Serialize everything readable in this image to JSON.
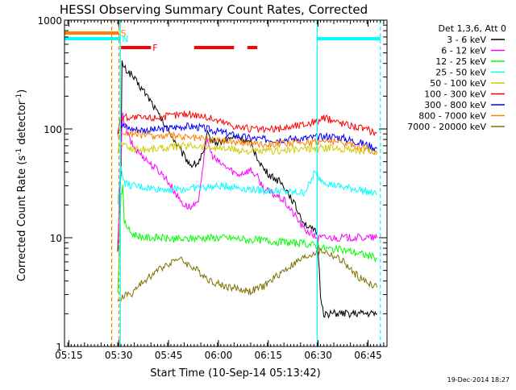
{
  "chart_data": {
    "type": "line",
    "title": "HESSI Observing Summary Count Rates, Corrected",
    "xlabel": "Start Time (10-Sep-14 05:13:42)",
    "ylabel": "Corrected Count Rate (s",
    "ylabel_sup1": "-1",
    "ylabel_mid": " detector",
    "ylabel_sup2": "-1",
    "ylabel_end": ")",
    "y_scale": "log",
    "ylim": [
      1,
      1000
    ],
    "xlim_minutes": [
      0,
      97
    ],
    "x_start": "05:13:42",
    "x_ticks": [
      {
        "minute": 1.3,
        "label": "05:15"
      },
      {
        "minute": 16.3,
        "label": "05:30"
      },
      {
        "minute": 31.3,
        "label": "05:45"
      },
      {
        "minute": 46.3,
        "label": "06:00"
      },
      {
        "minute": 61.3,
        "label": "06:15"
      },
      {
        "minute": 76.3,
        "label": "06:30"
      },
      {
        "minute": 91.3,
        "label": "06:45"
      }
    ],
    "y_ticks": [
      {
        "value": 1,
        "label": "1"
      },
      {
        "value": 10,
        "label": "10"
      },
      {
        "value": 100,
        "label": "100"
      },
      {
        "value": 1000,
        "label": "1000"
      }
    ],
    "legend_title": "Det 1,3,6, Att 0",
    "legend_position": "right",
    "series": [
      {
        "name": "3 - 6 keV",
        "color": "#000000",
        "points": [
          [
            16,
            8
          ],
          [
            17,
            40
          ],
          [
            17.3,
            420
          ],
          [
            18,
            360
          ],
          [
            20,
            320
          ],
          [
            22,
            260
          ],
          [
            24,
            220
          ],
          [
            26,
            180
          ],
          [
            28,
            140
          ],
          [
            30,
            110
          ],
          [
            32,
            90
          ],
          [
            34,
            70
          ],
          [
            36,
            56
          ],
          [
            38,
            47
          ],
          [
            40,
            48
          ],
          [
            42,
            62
          ],
          [
            43,
            90
          ],
          [
            44,
            80
          ],
          [
            46,
            75
          ],
          [
            48,
            78
          ],
          [
            50,
            82
          ],
          [
            52,
            85
          ],
          [
            54,
            80
          ],
          [
            56,
            72
          ],
          [
            58,
            55
          ],
          [
            60,
            42
          ],
          [
            62,
            37
          ],
          [
            64,
            34
          ],
          [
            66,
            30
          ],
          [
            68,
            24
          ],
          [
            70,
            18
          ],
          [
            72,
            14
          ],
          [
            74,
            12
          ],
          [
            76,
            11
          ],
          [
            77,
            3
          ],
          [
            78,
            2
          ],
          [
            80,
            2
          ],
          [
            82,
            2
          ],
          [
            84,
            2
          ],
          [
            86,
            2
          ],
          [
            88,
            2
          ],
          [
            90,
            2
          ],
          [
            92,
            2
          ],
          [
            94,
            2
          ]
        ]
      },
      {
        "name": "6 - 12 keV",
        "color": "#ff00ff",
        "points": [
          [
            16,
            8
          ],
          [
            17,
            60
          ],
          [
            17.5,
            150
          ],
          [
            18,
            110
          ],
          [
            20,
            75
          ],
          [
            22,
            62
          ],
          [
            24,
            55
          ],
          [
            26,
            47
          ],
          [
            28,
            42
          ],
          [
            30,
            37
          ],
          [
            32,
            30
          ],
          [
            34,
            24
          ],
          [
            36,
            20
          ],
          [
            38,
            19
          ],
          [
            40,
            20
          ],
          [
            42,
            55
          ],
          [
            43,
            80
          ],
          [
            44,
            60
          ],
          [
            46,
            50
          ],
          [
            48,
            46
          ],
          [
            50,
            42
          ],
          [
            52,
            38
          ],
          [
            54,
            40
          ],
          [
            56,
            42
          ],
          [
            58,
            36
          ],
          [
            60,
            28
          ],
          [
            62,
            26
          ],
          [
            64,
            24
          ],
          [
            66,
            22
          ],
          [
            68,
            18
          ],
          [
            70,
            15
          ],
          [
            72,
            12
          ],
          [
            74,
            11
          ],
          [
            76,
            10
          ],
          [
            78,
            10
          ],
          [
            80,
            10
          ],
          [
            84,
            10
          ],
          [
            88,
            10
          ],
          [
            92,
            10
          ],
          [
            94,
            10
          ]
        ]
      },
      {
        "name": "12 - 25 keV",
        "color": "#00ff00",
        "points": [
          [
            16,
            3
          ],
          [
            17,
            25
          ],
          [
            17.5,
            30
          ],
          [
            18,
            14
          ],
          [
            20,
            11
          ],
          [
            24,
            10
          ],
          [
            28,
            10
          ],
          [
            32,
            9.8
          ],
          [
            36,
            9.6
          ],
          [
            40,
            10
          ],
          [
            44,
            10
          ],
          [
            48,
            10
          ],
          [
            52,
            9.8
          ],
          [
            56,
            9.5
          ],
          [
            60,
            9.5
          ],
          [
            64,
            9.2
          ],
          [
            68,
            9
          ],
          [
            72,
            8.8
          ],
          [
            76,
            8.5
          ],
          [
            78,
            8
          ],
          [
            82,
            7.8
          ],
          [
            86,
            7.5
          ],
          [
            90,
            7
          ],
          [
            94,
            6.5
          ]
        ]
      },
      {
        "name": "25 - 50 keV",
        "color": "#00ffff",
        "points": [
          [
            16,
            20
          ],
          [
            17,
            45
          ],
          [
            18,
            32
          ],
          [
            20,
            30
          ],
          [
            24,
            29
          ],
          [
            28,
            28
          ],
          [
            32,
            28
          ],
          [
            36,
            28
          ],
          [
            40,
            29
          ],
          [
            44,
            29
          ],
          [
            48,
            30
          ],
          [
            52,
            29
          ],
          [
            56,
            28
          ],
          [
            60,
            27
          ],
          [
            64,
            27
          ],
          [
            68,
            26
          ],
          [
            72,
            26
          ],
          [
            74,
            32
          ],
          [
            75,
            40
          ],
          [
            76,
            36
          ],
          [
            80,
            31
          ],
          [
            84,
            29
          ],
          [
            88,
            28
          ],
          [
            92,
            26
          ],
          [
            94,
            25
          ]
        ]
      },
      {
        "name": "50 - 100 keV",
        "color": "#cccc00",
        "points": [
          [
            16,
            60
          ],
          [
            17,
            75
          ],
          [
            18,
            70
          ],
          [
            20,
            66
          ],
          [
            24,
            65
          ],
          [
            28,
            66
          ],
          [
            32,
            68
          ],
          [
            36,
            70
          ],
          [
            40,
            70
          ],
          [
            44,
            68
          ],
          [
            48,
            66
          ],
          [
            52,
            64
          ],
          [
            56,
            62
          ],
          [
            60,
            62
          ],
          [
            64,
            63
          ],
          [
            68,
            64
          ],
          [
            72,
            65
          ],
          [
            76,
            66
          ],
          [
            80,
            67
          ],
          [
            84,
            66
          ],
          [
            88,
            64
          ],
          [
            92,
            62
          ],
          [
            94,
            60
          ]
        ]
      },
      {
        "name": "100 - 300 keV",
        "color": "#ff0000",
        "points": [
          [
            16,
            95
          ],
          [
            17,
            125
          ],
          [
            18,
            130
          ],
          [
            20,
            128
          ],
          [
            24,
            125
          ],
          [
            28,
            128
          ],
          [
            32,
            132
          ],
          [
            36,
            138
          ],
          [
            40,
            135
          ],
          [
            44,
            125
          ],
          [
            48,
            115
          ],
          [
            52,
            105
          ],
          [
            56,
            100
          ],
          [
            60,
            98
          ],
          [
            64,
            100
          ],
          [
            68,
            105
          ],
          [
            72,
            110
          ],
          [
            76,
            118
          ],
          [
            78,
            125
          ],
          [
            80,
            122
          ],
          [
            84,
            112
          ],
          [
            88,
            105
          ],
          [
            92,
            96
          ],
          [
            94,
            92
          ]
        ]
      },
      {
        "name": "300 - 800 keV",
        "color": "#0000ff",
        "points": [
          [
            16,
            95
          ],
          [
            17,
            110
          ],
          [
            18,
            105
          ],
          [
            20,
            100
          ],
          [
            24,
            98
          ],
          [
            28,
            98
          ],
          [
            32,
            102
          ],
          [
            36,
            106
          ],
          [
            40,
            104
          ],
          [
            44,
            98
          ],
          [
            48,
            92
          ],
          [
            52,
            86
          ],
          [
            56,
            82
          ],
          [
            60,
            80
          ],
          [
            64,
            80
          ],
          [
            68,
            81
          ],
          [
            72,
            82
          ],
          [
            76,
            84
          ],
          [
            80,
            86
          ],
          [
            84,
            82
          ],
          [
            88,
            76
          ],
          [
            92,
            70
          ],
          [
            94,
            66
          ]
        ]
      },
      {
        "name": "800 - 7000 keV",
        "color": "#ff8000",
        "points": [
          [
            16,
            85
          ],
          [
            17,
            95
          ],
          [
            18,
            92
          ],
          [
            20,
            90
          ],
          [
            24,
            88
          ],
          [
            28,
            86
          ],
          [
            32,
            86
          ],
          [
            36,
            84
          ],
          [
            40,
            82
          ],
          [
            44,
            80
          ],
          [
            48,
            78
          ],
          [
            52,
            76
          ],
          [
            56,
            74
          ],
          [
            60,
            73
          ],
          [
            64,
            73
          ],
          [
            68,
            74
          ],
          [
            72,
            75
          ],
          [
            76,
            77
          ],
          [
            80,
            78
          ],
          [
            84,
            74
          ],
          [
            88,
            70
          ],
          [
            92,
            64
          ],
          [
            94,
            60
          ]
        ]
      },
      {
        "name": "7000 - 20000 keV",
        "color": "#807000",
        "points": [
          [
            16,
            2.5
          ],
          [
            18,
            3
          ],
          [
            20,
            3
          ],
          [
            22,
            3.5
          ],
          [
            24,
            4
          ],
          [
            26,
            4.5
          ],
          [
            28,
            5
          ],
          [
            30,
            5.5
          ],
          [
            32,
            6
          ],
          [
            34,
            6.5
          ],
          [
            36,
            6
          ],
          [
            38,
            5.5
          ],
          [
            40,
            5
          ],
          [
            42,
            4.5
          ],
          [
            44,
            4
          ],
          [
            46,
            3.8
          ],
          [
            48,
            3.6
          ],
          [
            50,
            3.5
          ],
          [
            52,
            3.4
          ],
          [
            54,
            3.3
          ],
          [
            56,
            3.2
          ],
          [
            58,
            3.4
          ],
          [
            60,
            3.6
          ],
          [
            62,
            4
          ],
          [
            64,
            4.5
          ],
          [
            66,
            5
          ],
          [
            68,
            5.5
          ],
          [
            70,
            6
          ],
          [
            72,
            6.5
          ],
          [
            74,
            7
          ],
          [
            76,
            7.5
          ],
          [
            78,
            7.5
          ],
          [
            80,
            7
          ],
          [
            82,
            6.5
          ],
          [
            84,
            6
          ],
          [
            86,
            5
          ],
          [
            88,
            4.5
          ],
          [
            90,
            4
          ],
          [
            92,
            3.8
          ],
          [
            94,
            3.5
          ]
        ]
      }
    ],
    "flag_bars": [
      {
        "label": "S",
        "color": "#ff8000",
        "start": 0,
        "end": 16.4,
        "level": 1
      },
      {
        "label": "N",
        "color": "#00ffff",
        "start": 0,
        "end": 16.8,
        "level": 2
      },
      {
        "label": "",
        "color": "#00ffff",
        "start": 76,
        "end": 95,
        "level": 2
      },
      {
        "label": "F",
        "color": "#ff0000",
        "start": 17,
        "end": 26,
        "level": 3
      },
      {
        "label": "",
        "color": "#ff0000",
        "start": 39,
        "end": 51,
        "level": 3
      },
      {
        "label": "",
        "color": "#ff0000",
        "start": 55,
        "end": 58,
        "level": 3
      }
    ],
    "vertical_markers": [
      {
        "minute": 14.2,
        "color": "#ff8000",
        "style": "dashed"
      },
      {
        "minute": 16.4,
        "color": "#ff8000",
        "style": "dashed"
      },
      {
        "minute": 16.8,
        "color": "#00ffff",
        "style": "solid"
      },
      {
        "minute": 76,
        "color": "#00ffff",
        "style": "solid"
      },
      {
        "minute": 95,
        "color": "#00ffff",
        "style": "dashed"
      }
    ]
  },
  "footer": {
    "date": "19-Dec-2014 18:27"
  }
}
